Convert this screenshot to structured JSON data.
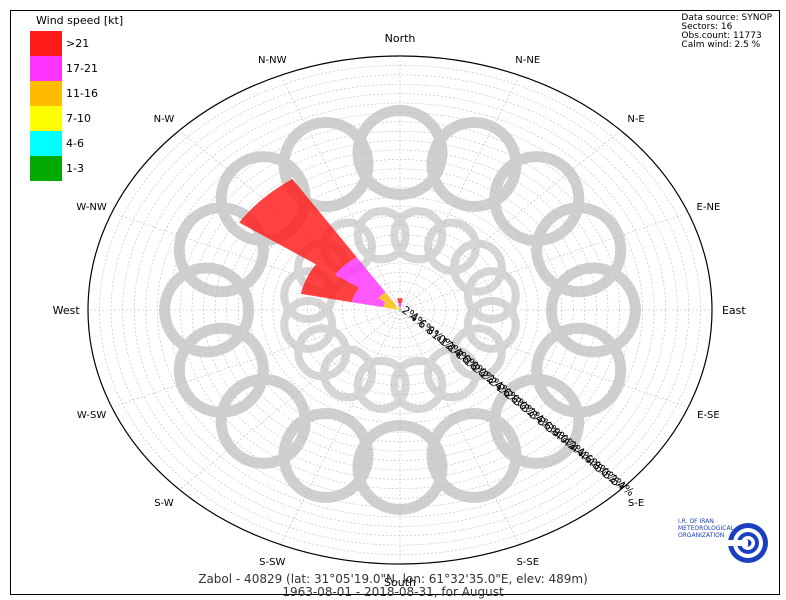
{
  "chart_data": {
    "type": "wind-rose",
    "title": "Zabol - 40829 (lat: 31°05'19.0\"N, lon: 61°32'35.0\"E, elev: 489m)",
    "subtitle": "1963-08-01 - 2018-08-31, for August",
    "legend": {
      "title": "Wind speed [kt]",
      "placement": "top-left",
      "classes": [
        {
          "label": ">21",
          "color": "#ff1a1a"
        },
        {
          "label": "17-21",
          "color": "#ff33ff"
        },
        {
          "label": "11-16",
          "color": "#ffbb00"
        },
        {
          "label": "7-10",
          "color": "#ffff00"
        },
        {
          "label": "4-6",
          "color": "#00ffff"
        },
        {
          "label": "1-3",
          "color": "#00aa00"
        }
      ]
    },
    "info": [
      "Data source: SYNOP",
      "Sectors: 16",
      "Obs.count: 11773",
      "Calm wind: 2.5 %"
    ],
    "directions": [
      "North",
      "N-NE",
      "N-E",
      "E-NE",
      "East",
      "E-SE",
      "S-E",
      "S-SE",
      "South",
      "S-SW",
      "S-W",
      "W-SW",
      "West",
      "W-NW",
      "N-W",
      "N-NW"
    ],
    "radial_max_percent": 54,
    "radial_ticks": [
      "2%",
      "4%",
      "6%",
      "8%",
      "10%",
      "12%",
      "14%",
      "16%",
      "18%",
      "20%",
      "22%",
      "24%",
      "26%",
      "28%",
      "30%",
      "32%",
      "34%",
      "36%",
      "38%",
      "40%",
      "42%",
      "44%",
      "46%",
      "48%",
      "50%",
      "52%",
      "54%"
    ],
    "series": [
      {
        "name": ">21",
        "values": [
          1,
          0,
          0,
          0,
          0,
          0,
          0,
          0,
          0,
          0,
          0,
          0,
          0,
          9,
          20,
          0
        ]
      },
      {
        "name": "17-21",
        "values": [
          1,
          0,
          0,
          0,
          0,
          0,
          0,
          0,
          0,
          0,
          0,
          0,
          0,
          5.5,
          9,
          0
        ]
      },
      {
        "name": "11-16",
        "values": [
          0.5,
          0,
          0,
          0,
          0,
          0,
          0,
          0,
          0,
          0,
          0,
          0,
          0,
          2.5,
          3.5,
          0
        ]
      },
      {
        "name": "7-10",
        "values": [
          0,
          0,
          0,
          0,
          0,
          0,
          0,
          0,
          0,
          0,
          0,
          0,
          0,
          0.5,
          1,
          0
        ]
      },
      {
        "name": "4-6",
        "values": [
          0,
          0,
          0,
          0,
          0,
          0,
          0,
          0,
          0,
          0,
          0,
          0,
          0,
          0,
          0,
          0
        ]
      },
      {
        "name": "1-3",
        "values": [
          0,
          0,
          0,
          0,
          0,
          0,
          0,
          0,
          0,
          0,
          0,
          0,
          0,
          0,
          0,
          0
        ]
      }
    ]
  },
  "logo": {
    "lines": [
      "I.R. OF IRAN",
      "METEOROLOGICAL",
      "ORGANIZATION"
    ],
    "color": "#1a3fbf"
  }
}
